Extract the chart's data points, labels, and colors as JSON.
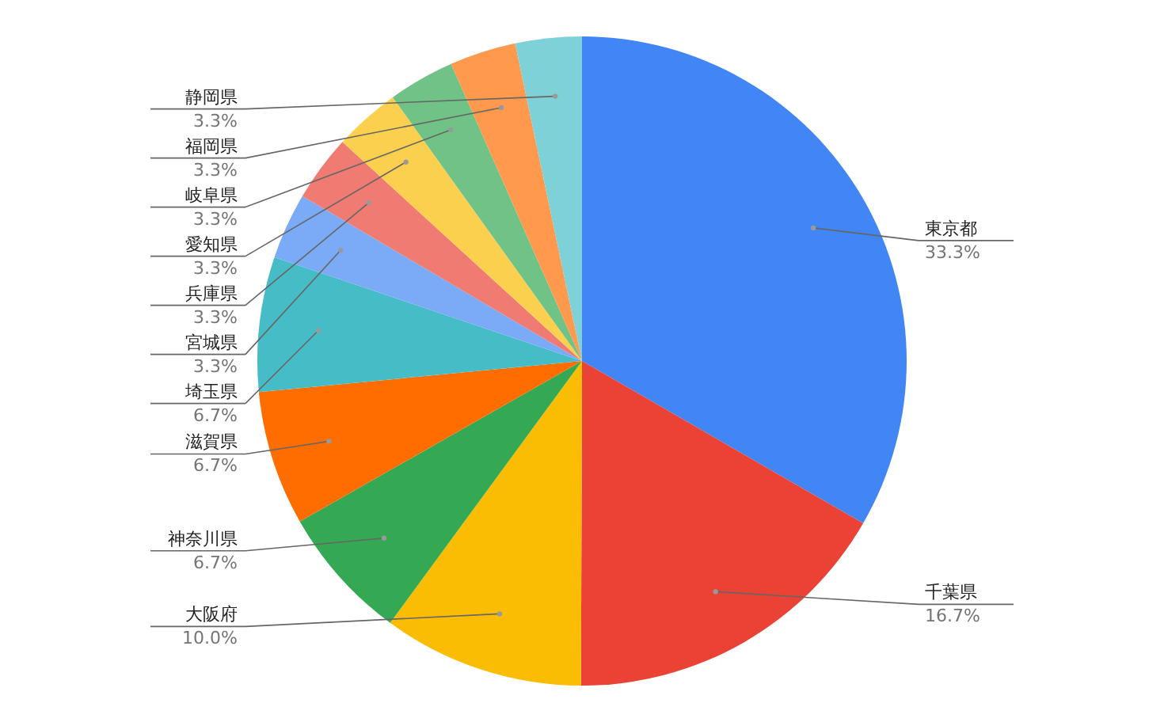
{
  "chart_data": {
    "type": "pie",
    "categories": [
      "東京都",
      "千葉県",
      "大阪府",
      "神奈川県",
      "滋賀県",
      "埼玉県",
      "宮城県",
      "兵庫県",
      "愛知県",
      "岐阜県",
      "福岡県",
      "静岡県"
    ],
    "values": [
      33.3,
      16.7,
      10.0,
      6.7,
      6.7,
      6.7,
      3.3,
      3.3,
      3.3,
      3.3,
      3.3,
      3.3
    ],
    "colors": [
      "#4285f4",
      "#ea4335",
      "#fbbc04",
      "#34a853",
      "#ff6d01",
      "#46bdc6",
      "#7baaf7",
      "#f07b72",
      "#fcd04f",
      "#71c287",
      "#ff994d",
      "#7ed1d7"
    ],
    "value_labels": [
      "33.3%",
      "16.7%",
      "10.0%",
      "6.7%",
      "6.7%",
      "6.7%",
      "3.3%",
      "3.3%",
      "3.3%",
      "3.3%",
      "3.3%",
      "3.3%"
    ],
    "data_labels": true
  }
}
